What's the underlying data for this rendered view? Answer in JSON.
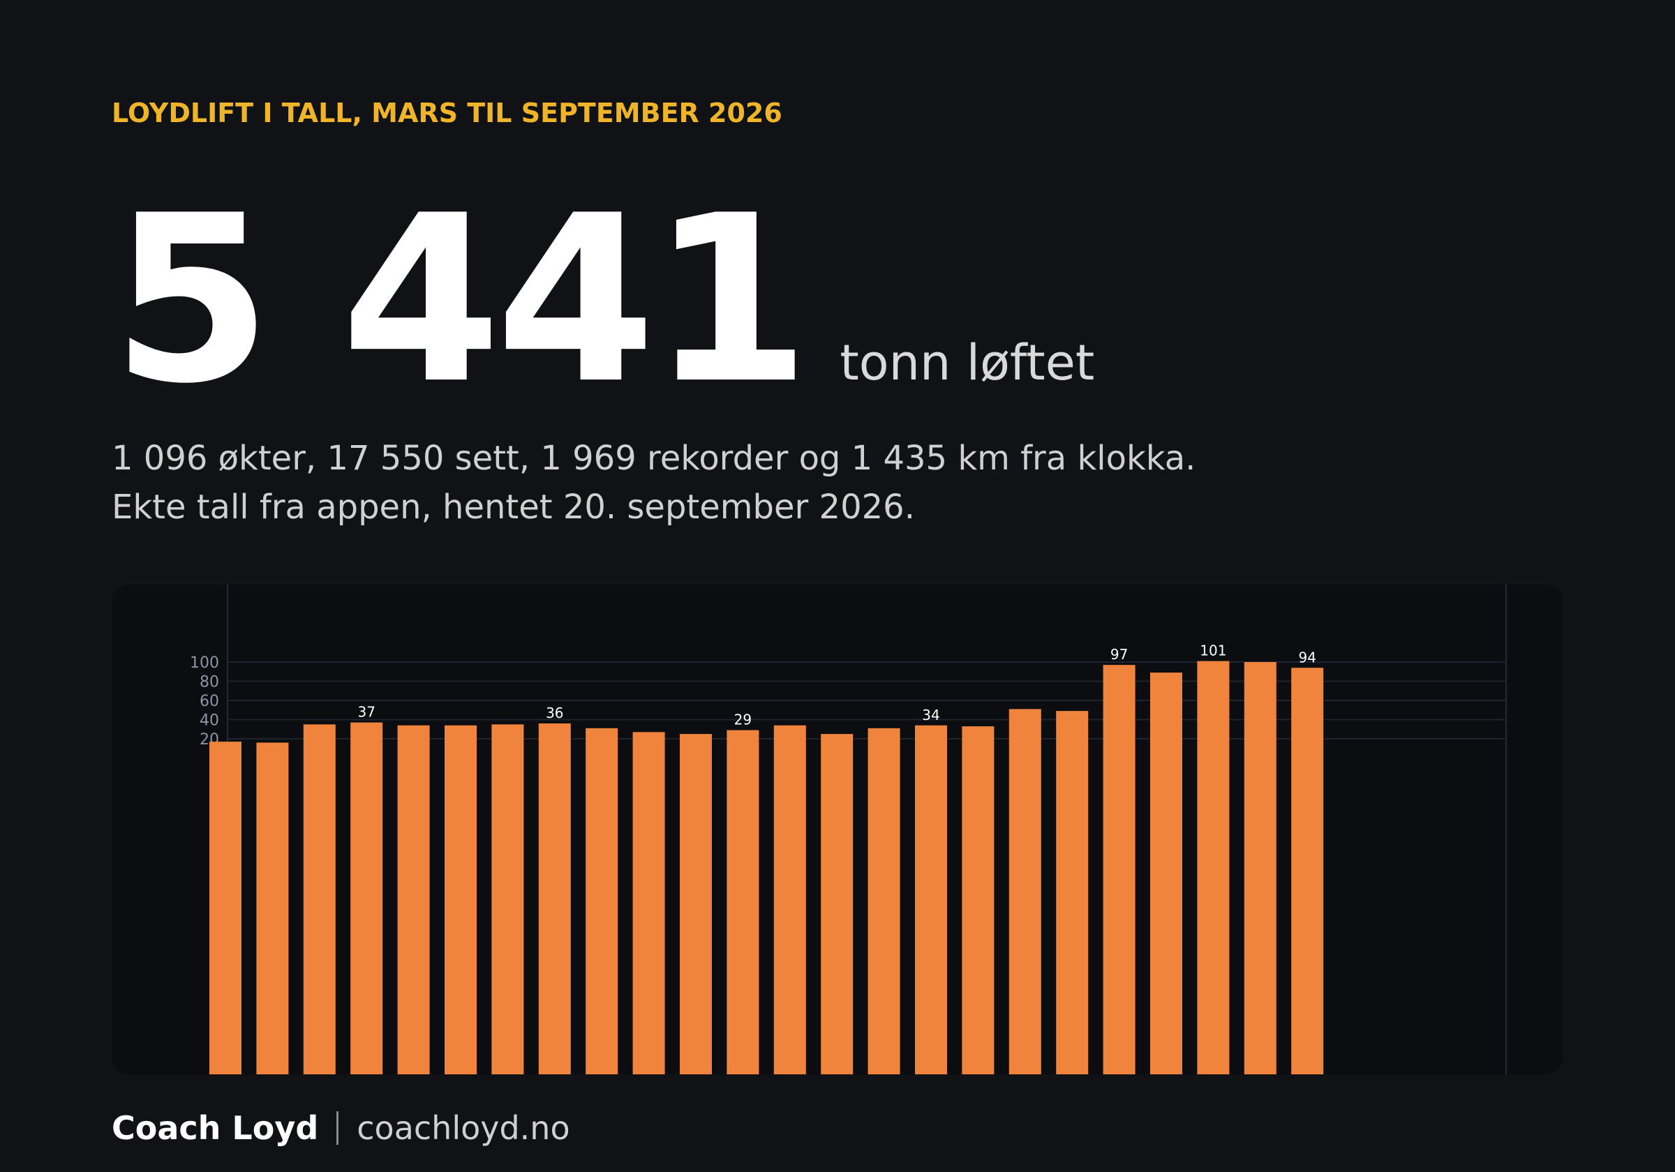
{
  "kicker": "LOYDLIFT I TALL, MARS TIL SEPTEMBER 2026",
  "hero": {
    "number": "5 441",
    "unit": "tonn løftet"
  },
  "summary": {
    "line1": "1 096 økter, 17 550 sett, 1 969 rekorder og 1 435 km fra klokka.",
    "line2": "Ekte tall fra appen, hentet 20. september 2026."
  },
  "footer": {
    "brand": "Coach Loyd",
    "site": "coachloyd.no"
  },
  "colors": {
    "bar": "#f0843c",
    "grid": "#1e2530",
    "tick_text": "#8b95a5",
    "label_text": "#ffffff",
    "accent": "#f0b429"
  },
  "chart_data": {
    "type": "bar",
    "title": "",
    "xlabel": "",
    "ylabel": "",
    "y_visible_range": [
      14,
      115
    ],
    "y_ticks": [
      20,
      40,
      60,
      80,
      100
    ],
    "grid": true,
    "legend": "none",
    "values": [
      null,
      null,
      17,
      16,
      35,
      37,
      34,
      34,
      35,
      36,
      31,
      27,
      25,
      29,
      34,
      25,
      31,
      34,
      33,
      51,
      49,
      97,
      89,
      101,
      100,
      94
    ],
    "labeled_values": [
      {
        "index": 5,
        "label": "37"
      },
      {
        "index": 9,
        "label": "36"
      },
      {
        "index": 13,
        "label": "29"
      },
      {
        "index": 17,
        "label": "34"
      },
      {
        "index": 21,
        "label": "97"
      },
      {
        "index": 23,
        "label": "101"
      },
      {
        "index": 25,
        "label": "94"
      }
    ]
  }
}
